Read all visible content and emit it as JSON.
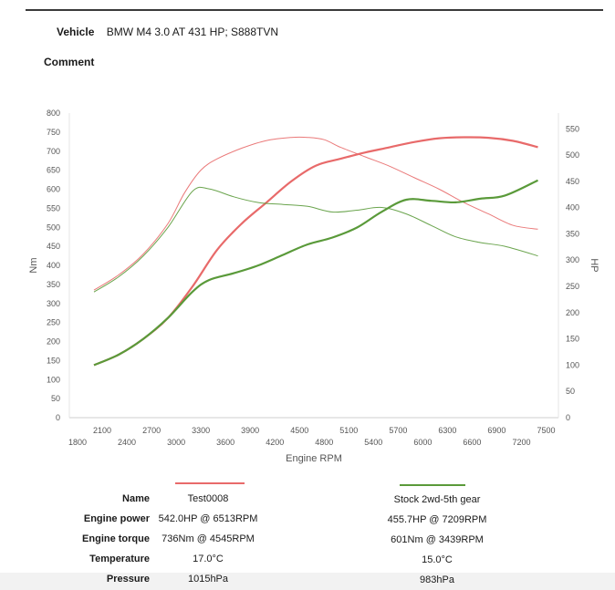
{
  "header": {
    "vehicle_label": "Vehicle",
    "vehicle_value": "BMW M4 3.0 AT 431 HP; S888TVN",
    "comment_label": "Comment"
  },
  "chart_data": {
    "type": "line",
    "xlabel": "Engine RPM",
    "ylabel_left": "Nm",
    "ylabel_right": "HP",
    "xlim": [
      1700,
      7650
    ],
    "ylim_left": [
      0,
      800
    ],
    "ylim_right": [
      0,
      580
    ],
    "x_ticks_upper": [
      "2100",
      "2700",
      "3300",
      "3900",
      "4500",
      "5100",
      "5700",
      "6300",
      "6900",
      "7500"
    ],
    "x_ticks_lower": [
      "1800",
      "2400",
      "3000",
      "3600",
      "4200",
      "4800",
      "5400",
      "6000",
      "6600",
      "7200"
    ],
    "y_ticks_left": [
      "0",
      "50",
      "100",
      "150",
      "200",
      "250",
      "300",
      "350",
      "400",
      "450",
      "500",
      "550",
      "600",
      "650",
      "700",
      "750",
      "800"
    ],
    "y_ticks_right": [
      "0",
      "50",
      "100",
      "150",
      "200",
      "250",
      "300",
      "350",
      "400",
      "450",
      "500",
      "550"
    ],
    "series": [
      {
        "name": "Test0008",
        "color": "#e86a6a",
        "power": {
          "axis": "HP",
          "x": [
            2000,
            2300,
            2600,
            2900,
            3200,
            3500,
            3800,
            4100,
            4400,
            4700,
            5000,
            5300,
            5600,
            5900,
            6200,
            6500,
            6800,
            7100,
            7400
          ],
          "y": [
            100,
            120,
            150,
            190,
            250,
            320,
            370,
            410,
            450,
            480,
            493,
            505,
            515,
            525,
            532,
            534,
            533,
            527,
            515
          ]
        },
        "torque": {
          "axis": "Nm",
          "x": [
            2000,
            2300,
            2600,
            2900,
            3100,
            3300,
            3500,
            3800,
            4100,
            4400,
            4600,
            4800,
            5000,
            5300,
            5600,
            5900,
            6200,
            6500,
            6800,
            7100,
            7400
          ],
          "y": [
            335,
            375,
            430,
            510,
            590,
            650,
            680,
            708,
            728,
            736,
            736,
            730,
            710,
            685,
            660,
            630,
            600,
            565,
            535,
            505,
            495
          ]
        }
      },
      {
        "name": "Stock 2wd-5th gear",
        "color": "#5a9a3a",
        "power": {
          "axis": "HP",
          "x": [
            2000,
            2300,
            2600,
            2900,
            3200,
            3400,
            3700,
            4000,
            4300,
            4600,
            4900,
            5200,
            5500,
            5800,
            6100,
            6400,
            6700,
            7000,
            7400
          ],
          "y": [
            100,
            120,
            150,
            190,
            240,
            262,
            275,
            290,
            310,
            330,
            343,
            362,
            392,
            415,
            413,
            410,
            417,
            423,
            452
          ]
        },
        "torque": {
          "axis": "Nm",
          "x": [
            2000,
            2300,
            2600,
            2900,
            3200,
            3400,
            3700,
            4000,
            4300,
            4600,
            4900,
            5200,
            5500,
            5800,
            6100,
            6400,
            6700,
            7000,
            7400
          ],
          "y": [
            330,
            370,
            425,
            500,
            595,
            601,
            580,
            565,
            560,
            555,
            540,
            545,
            552,
            535,
            505,
            475,
            460,
            450,
            425
          ]
        }
      }
    ]
  },
  "specs": {
    "rows": [
      {
        "label": "Name",
        "run1": "Test0008",
        "run2": "Stock 2wd-5th gear"
      },
      {
        "label": "Engine power",
        "run1": "542.0HP @ 6513RPM",
        "run2": "455.7HP @ 7209RPM"
      },
      {
        "label": "Engine torque",
        "run1": "736Nm @ 4545RPM",
        "run2": "601Nm @ 3439RPM"
      },
      {
        "label": "Temperature",
        "run1": "17.0°C",
        "run2": "15.0°C"
      },
      {
        "label": "Pressure",
        "run1": "1015hPa",
        "run2": "983hPa"
      }
    ]
  }
}
